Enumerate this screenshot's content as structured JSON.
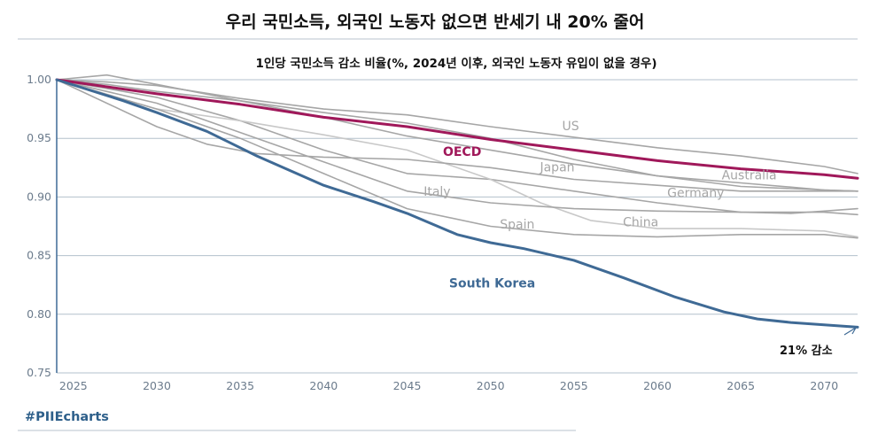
{
  "chart_data": {
    "type": "line",
    "title": "우리 국민소득, 외국인 노동자 없으면 반세기 내 20% 줄어",
    "subtitle": "1인당 국민소득 감소 비율(%, 2024년 이후, 외국인 노동자 유입이 없을 경우)",
    "xlim": [
      2024,
      2072
    ],
    "ylim": [
      0.75,
      1.0
    ],
    "x_ticks": [
      "2025",
      "2030",
      "2035",
      "2040",
      "2045",
      "2050",
      "2055",
      "2060",
      "2065",
      "2070"
    ],
    "y_ticks": [
      "1.00",
      "0.95",
      "0.90",
      "0.85",
      "0.80",
      "0.75"
    ],
    "grid": true,
    "annotation": "21% 감소",
    "hashtag": "#PIIEcharts",
    "series": [
      {
        "name": "US",
        "color": "#a6a6a6",
        "emphasis": false,
        "points": [
          [
            2024,
            1.0
          ],
          [
            2027,
            0.998
          ],
          [
            2030,
            0.995
          ],
          [
            2035,
            0.984
          ],
          [
            2040,
            0.975
          ],
          [
            2045,
            0.97
          ],
          [
            2050,
            0.96
          ],
          [
            2055,
            0.951
          ],
          [
            2060,
            0.942
          ],
          [
            2065,
            0.935
          ],
          [
            2070,
            0.926
          ],
          [
            2072,
            0.92
          ]
        ]
      },
      {
        "name": "Australia",
        "color": "#a6a6a6",
        "emphasis": false,
        "points": [
          [
            2024,
            1.0
          ],
          [
            2027,
            1.004
          ],
          [
            2030,
            0.996
          ],
          [
            2035,
            0.982
          ],
          [
            2040,
            0.968
          ],
          [
            2045,
            0.952
          ],
          [
            2050,
            0.94
          ],
          [
            2055,
            0.928
          ],
          [
            2060,
            0.918
          ],
          [
            2065,
            0.909
          ],
          [
            2070,
            0.906
          ],
          [
            2072,
            0.905
          ]
        ]
      },
      {
        "name": "Japan",
        "color": "#a6a6a6",
        "emphasis": false,
        "points": [
          [
            2024,
            1.0
          ],
          [
            2027,
            0.996
          ],
          [
            2030,
            0.99
          ],
          [
            2035,
            0.982
          ],
          [
            2040,
            0.972
          ],
          [
            2045,
            0.963
          ],
          [
            2050,
            0.95
          ],
          [
            2055,
            0.932
          ],
          [
            2060,
            0.918
          ],
          [
            2065,
            0.912
          ],
          [
            2070,
            0.906
          ],
          [
            2072,
            0.905
          ]
        ]
      },
      {
        "name": "Germany",
        "color": "#a6a6a6",
        "emphasis": false,
        "points": [
          [
            2024,
            1.0
          ],
          [
            2030,
            0.985
          ],
          [
            2035,
            0.965
          ],
          [
            2040,
            0.94
          ],
          [
            2045,
            0.92
          ],
          [
            2050,
            0.915
          ],
          [
            2055,
            0.905
          ],
          [
            2060,
            0.895
          ],
          [
            2065,
            0.887
          ],
          [
            2068,
            0.886
          ],
          [
            2070,
            0.888
          ],
          [
            2072,
            0.89
          ]
        ]
      },
      {
        "name": "Italy",
        "color": "#c8c8c8",
        "emphasis": false,
        "points": [
          [
            2024,
            1.0
          ],
          [
            2030,
            0.975
          ],
          [
            2035,
            0.965
          ],
          [
            2040,
            0.953
          ],
          [
            2045,
            0.94
          ],
          [
            2050,
            0.915
          ],
          [
            2053,
            0.895
          ],
          [
            2056,
            0.88
          ],
          [
            2060,
            0.873
          ],
          [
            2065,
            0.873
          ],
          [
            2070,
            0.871
          ],
          [
            2072,
            0.866
          ]
        ]
      },
      {
        "name": "China",
        "color": "#a6a6a6",
        "emphasis": false,
        "points": [
          [
            2024,
            1.0
          ],
          [
            2030,
            0.96
          ],
          [
            2033,
            0.945
          ],
          [
            2036,
            0.937
          ],
          [
            2040,
            0.934
          ],
          [
            2045,
            0.932
          ],
          [
            2050,
            0.925
          ],
          [
            2055,
            0.915
          ],
          [
            2060,
            0.91
          ],
          [
            2065,
            0.905
          ],
          [
            2070,
            0.905
          ],
          [
            2072,
            0.905
          ]
        ]
      },
      {
        "name": "Spain",
        "color": "#a6a6a6",
        "emphasis": false,
        "points": [
          [
            2024,
            1.0
          ],
          [
            2030,
            0.975
          ],
          [
            2035,
            0.95
          ],
          [
            2040,
            0.92
          ],
          [
            2045,
            0.89
          ],
          [
            2050,
            0.875
          ],
          [
            2055,
            0.868
          ],
          [
            2060,
            0.866
          ],
          [
            2065,
            0.868
          ],
          [
            2070,
            0.868
          ],
          [
            2072,
            0.865
          ]
        ]
      },
      {
        "name": "",
        "color": "#a6a6a6",
        "emphasis": false,
        "points": [
          [
            2024,
            1.0
          ],
          [
            2030,
            0.98
          ],
          [
            2035,
            0.955
          ],
          [
            2040,
            0.93
          ],
          [
            2045,
            0.905
          ],
          [
            2050,
            0.895
          ],
          [
            2055,
            0.89
          ],
          [
            2060,
            0.888
          ],
          [
            2065,
            0.887
          ],
          [
            2070,
            0.887
          ],
          [
            2072,
            0.885
          ]
        ]
      },
      {
        "name": "OECD",
        "color": "#a0185a",
        "emphasis": true,
        "points": [
          [
            2024,
            1.0
          ],
          [
            2030,
            0.988
          ],
          [
            2035,
            0.979
          ],
          [
            2040,
            0.968
          ],
          [
            2045,
            0.96
          ],
          [
            2050,
            0.949
          ],
          [
            2055,
            0.94
          ],
          [
            2060,
            0.931
          ],
          [
            2065,
            0.924
          ],
          [
            2070,
            0.919
          ],
          [
            2072,
            0.916
          ]
        ]
      },
      {
        "name": "South Korea",
        "color": "#3f6a95",
        "emphasis": true,
        "points": [
          [
            2024,
            1.0
          ],
          [
            2028,
            0.982
          ],
          [
            2030,
            0.972
          ],
          [
            2033,
            0.956
          ],
          [
            2036,
            0.935
          ],
          [
            2040,
            0.91
          ],
          [
            2043,
            0.896
          ],
          [
            2045,
            0.886
          ],
          [
            2048,
            0.868
          ],
          [
            2050,
            0.861
          ],
          [
            2052,
            0.856
          ],
          [
            2055,
            0.846
          ],
          [
            2058,
            0.831
          ],
          [
            2061,
            0.815
          ],
          [
            2064,
            0.802
          ],
          [
            2066,
            0.796
          ],
          [
            2068,
            0.793
          ],
          [
            2070,
            0.791
          ],
          [
            2072,
            0.789
          ]
        ]
      }
    ],
    "labels": [
      {
        "text": "US",
        "x": 2054.8,
        "y": 0.957,
        "color": "#a6a6a6",
        "bold": false
      },
      {
        "text": "OECD",
        "x": 2048.3,
        "y": 0.935,
        "color": "#a0185a",
        "bold": true
      },
      {
        "text": "Japan",
        "x": 2054.0,
        "y": 0.922,
        "color": "#a6a6a6",
        "bold": false
      },
      {
        "text": "Australia",
        "x": 2065.5,
        "y": 0.915,
        "color": "#a6a6a6",
        "bold": false
      },
      {
        "text": "Italy",
        "x": 2046.8,
        "y": 0.901,
        "color": "#a6a6a6",
        "bold": false
      },
      {
        "text": "Germany",
        "x": 2062.3,
        "y": 0.9,
        "color": "#a6a6a6",
        "bold": false
      },
      {
        "text": "Spain",
        "x": 2051.6,
        "y": 0.873,
        "color": "#a6a6a6",
        "bold": false
      },
      {
        "text": "China",
        "x": 2059.0,
        "y": 0.875,
        "color": "#a6a6a6",
        "bold": false
      },
      {
        "text": "South Korea",
        "x": 2050.1,
        "y": 0.823,
        "color": "#3f6a95",
        "bold": true
      }
    ]
  }
}
